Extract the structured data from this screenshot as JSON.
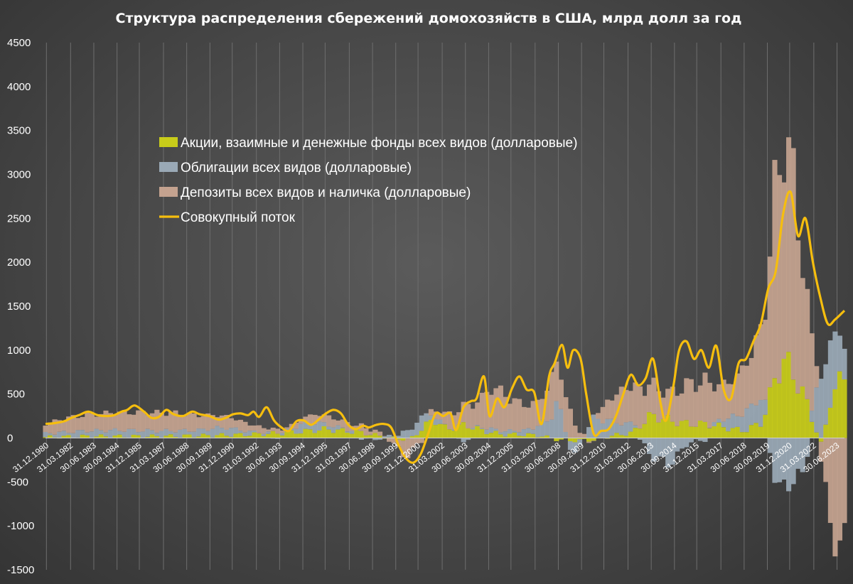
{
  "chart_data": {
    "type": "bar",
    "title": "Структура распределения сбережений домохозяйств в США, млрд долл за год",
    "ylim": [
      -1500,
      4500
    ],
    "yticks": [
      "4500",
      "4000",
      "3500",
      "3000",
      "2500",
      "2000",
      "1500",
      "1000",
      "500",
      "0",
      "-500",
      "-1000",
      "-1500"
    ],
    "ytick_values": [
      4500,
      4000,
      3500,
      3000,
      2500,
      2000,
      1500,
      1000,
      500,
      0,
      -500,
      -1000,
      -1500
    ],
    "x_tick_labels": [
      "31.12.1980",
      "31.03.1982",
      "30.06.1983",
      "30.09.1984",
      "31.12.1985",
      "31.03.1987",
      "30.06.1988",
      "30.09.1989",
      "31.12.1990",
      "31.03.1992",
      "30.06.1993",
      "30.09.1994",
      "31.12.1995",
      "31.03.1997",
      "30.06.1998",
      "30.09.1999",
      "31.12.2000",
      "31.03.2002",
      "30.06.2003",
      "30.09.2004",
      "31.12.2005",
      "31.03.2007",
      "30.06.2008",
      "30.09.2009",
      "31.12.2010",
      "31.03.2012",
      "30.06.2013",
      "30.09.2014",
      "31.12.2015",
      "31.03.2017",
      "30.06.2018",
      "30.09.2019",
      "31.12.2020",
      "31.03.2022",
      "30.06.2023"
    ],
    "x_tick_years": [
      1980.95,
      1982.25,
      1983.5,
      1984.75,
      1985.95,
      1987.25,
      1988.5,
      1989.75,
      1990.95,
      1992.25,
      1993.5,
      1994.75,
      1995.95,
      1997.25,
      1998.5,
      1999.75,
      2000.95,
      2002.25,
      2003.5,
      2004.75,
      2005.95,
      2007.25,
      2008.5,
      2009.75,
      2010.95,
      2012.25,
      2013.5,
      2014.75,
      2015.95,
      2017.25,
      2018.5,
      2019.75,
      2020.95,
      2022.25,
      2023.5
    ],
    "x_range": [
      1980.9,
      2023.9
    ],
    "legend_position": "upper-left",
    "grid": "vertical",
    "series": [
      {
        "name": "Акции, взаимные и денежные фонды всех видов (долларовые)",
        "color": "#c8cc1a",
        "knots": [
          [
            1980.9,
            10
          ],
          [
            1983,
            20
          ],
          [
            1985,
            20
          ],
          [
            1987,
            20
          ],
          [
            1990,
            30
          ],
          [
            1992,
            40
          ],
          [
            1994,
            60
          ],
          [
            1996,
            100
          ],
          [
            1998,
            60
          ],
          [
            1999.5,
            0
          ],
          [
            2000.5,
            -20
          ],
          [
            2001.8,
            220
          ],
          [
            2002.5,
            100
          ],
          [
            2003.5,
            150
          ],
          [
            2004.5,
            80
          ],
          [
            2005.5,
            40
          ],
          [
            2006.5,
            40
          ],
          [
            2007.5,
            30
          ],
          [
            2008.5,
            -20
          ],
          [
            2009.5,
            -30
          ],
          [
            2010.5,
            -20
          ],
          [
            2011.5,
            30
          ],
          [
            2012.5,
            60
          ],
          [
            2013.5,
            260
          ],
          [
            2014.5,
            200
          ],
          [
            2015.5,
            160
          ],
          [
            2016.5,
            160
          ],
          [
            2017.5,
            120
          ],
          [
            2018.5,
            80
          ],
          [
            2019.5,
            180
          ],
          [
            2020.2,
            700
          ],
          [
            2020.7,
            900
          ],
          [
            2021.2,
            700
          ],
          [
            2021.7,
            500
          ],
          [
            2022.2,
            200
          ],
          [
            2022.7,
            -100
          ],
          [
            2023.2,
            500
          ],
          [
            2023.9,
            700
          ]
        ]
      },
      {
        "name": "Облигации всех видов (долларовые)",
        "color": "#9aa9b6",
        "knots": [
          [
            1980.9,
            40
          ],
          [
            1983,
            60
          ],
          [
            1985,
            70
          ],
          [
            1987,
            60
          ],
          [
            1989,
            60
          ],
          [
            1990.5,
            90
          ],
          [
            1992,
            30
          ],
          [
            1993.5,
            0
          ],
          [
            1995,
            100
          ],
          [
            1996.5,
            40
          ],
          [
            1998.5,
            -20
          ],
          [
            2000,
            40
          ],
          [
            2001,
            150
          ],
          [
            2002,
            40
          ],
          [
            2003.5,
            -30
          ],
          [
            2004.5,
            40
          ],
          [
            2006,
            40
          ],
          [
            2007,
            60
          ],
          [
            2008,
            200
          ],
          [
            2008.5,
            400
          ],
          [
            2009.3,
            -200
          ],
          [
            2010.5,
            250
          ],
          [
            2011.5,
            150
          ],
          [
            2012.5,
            100
          ],
          [
            2013.5,
            -200
          ],
          [
            2014.5,
            -300
          ],
          [
            2015.5,
            -50
          ],
          [
            2016.5,
            -20
          ],
          [
            2017.5,
            100
          ],
          [
            2018.5,
            200
          ],
          [
            2019.5,
            300
          ],
          [
            2020.3,
            -600
          ],
          [
            2021,
            -500
          ],
          [
            2021.7,
            -400
          ],
          [
            2022.3,
            300
          ],
          [
            2022.8,
            900
          ],
          [
            2023.3,
            600
          ],
          [
            2023.9,
            400
          ]
        ]
      },
      {
        "name": "Депозиты всех видов и наличка (долларовые)",
        "color": "#c4a28f",
        "knots": [
          [
            1980.9,
            110
          ],
          [
            1982,
            160
          ],
          [
            1983,
            180
          ],
          [
            1984.5,
            200
          ],
          [
            1985.5,
            200
          ],
          [
            1986.5,
            210
          ],
          [
            1988,
            200
          ],
          [
            1989.5,
            160
          ],
          [
            1991,
            120
          ],
          [
            1992.5,
            60
          ],
          [
            1993.5,
            30
          ],
          [
            1994.5,
            50
          ],
          [
            1995.5,
            100
          ],
          [
            1996.5,
            90
          ],
          [
            1997.5,
            70
          ],
          [
            1998.5,
            60
          ],
          [
            1999.5,
            -30
          ],
          [
            2000.3,
            -200
          ],
          [
            2001.5,
            30
          ],
          [
            2002.5,
            150
          ],
          [
            2003.5,
            210
          ],
          [
            2004.5,
            350
          ],
          [
            2005,
            500
          ],
          [
            2005.5,
            420
          ],
          [
            2006.5,
            300
          ],
          [
            2007.5,
            260
          ],
          [
            2008.2,
            460
          ],
          [
            2008.8,
            420
          ],
          [
            2009.5,
            120
          ],
          [
            2010.2,
            -40
          ],
          [
            2010.8,
            120
          ],
          [
            2011.5,
            300
          ],
          [
            2012.5,
            450
          ],
          [
            2013.5,
            350
          ],
          [
            2014.5,
            300
          ],
          [
            2015.5,
            450
          ],
          [
            2016.5,
            480
          ],
          [
            2017.5,
            380
          ],
          [
            2018.5,
            500
          ],
          [
            2019.5,
            800
          ],
          [
            2020.2,
            2200
          ],
          [
            2020.7,
            2500
          ],
          [
            2021.2,
            2200
          ],
          [
            2021.7,
            1400
          ],
          [
            2022.2,
            700
          ],
          [
            2022.7,
            -300
          ],
          [
            2023.2,
            -1100
          ],
          [
            2023.9,
            -1200
          ]
        ]
      }
    ],
    "total_flow": {
      "name": "Совокупный поток",
      "color": "#f6be0e",
      "x": [
        1980.9,
        1981.4,
        1981.9,
        1982.3,
        1982.7,
        1983.2,
        1983.7,
        1984.2,
        1984.6,
        1985.0,
        1985.3,
        1985.7,
        1986.2,
        1986.6,
        1987.0,
        1987.4,
        1987.8,
        1988.3,
        1988.8,
        1989.2,
        1989.7,
        1990.2,
        1990.6,
        1991.0,
        1991.4,
        1991.8,
        1992.1,
        1992.4,
        1992.8,
        1993.2,
        1993.6,
        1994.0,
        1994.4,
        1994.8,
        1995.2,
        1995.6,
        1996.0,
        1996.4,
        1996.8,
        1997.2,
        1997.6,
        1998.0,
        1998.3,
        1998.7,
        1999.1,
        1999.5,
        1999.9,
        2000.3,
        2000.7,
        2001.1,
        2001.5,
        2001.9,
        2002.3,
        2002.7,
        2003.0,
        2003.4,
        2003.8,
        2004.1,
        2004.5,
        2004.8,
        2005.2,
        2005.6,
        2006.0,
        2006.4,
        2006.8,
        2007.2,
        2007.6,
        2008.0,
        2008.3,
        2008.7,
        2009.0,
        2009.3,
        2009.7,
        2010.0,
        2010.4,
        2010.8,
        2011.2,
        2011.6,
        2012.0,
        2012.4,
        2012.8,
        2013.2,
        2013.6,
        2014.0,
        2014.3,
        2014.7,
        2015.0,
        2015.4,
        2015.8,
        2016.2,
        2016.6,
        2017.0,
        2017.4,
        2017.8,
        2018.2,
        2018.6,
        2019.0,
        2019.4,
        2019.8,
        2020.2,
        2020.6,
        2021.0,
        2021.4,
        2021.8,
        2022.2,
        2022.6,
        2023.0,
        2023.4,
        2023.9
      ],
      "y": [
        160,
        170,
        190,
        230,
        260,
        300,
        260,
        250,
        260,
        300,
        320,
        370,
        300,
        230,
        240,
        320,
        270,
        250,
        300,
        270,
        250,
        210,
        230,
        270,
        280,
        260,
        300,
        240,
        350,
        200,
        120,
        80,
        190,
        200,
        150,
        210,
        280,
        320,
        280,
        150,
        100,
        140,
        120,
        150,
        160,
        120,
        -80,
        -230,
        -280,
        -180,
        50,
        280,
        250,
        280,
        90,
        350,
        420,
        450,
        700,
        250,
        450,
        350,
        560,
        700,
        550,
        520,
        160,
        700,
        850,
        1060,
        800,
        1000,
        900,
        500,
        50,
        80,
        100,
        250,
        500,
        720,
        600,
        680,
        900,
        400,
        200,
        600,
        1000,
        1100,
        900,
        1000,
        800,
        1050,
        550,
        450,
        850,
        900,
        1100,
        1300,
        1700,
        1900,
        2550,
        2800,
        2300,
        2500,
        2000,
        1600,
        1300,
        1350,
        1450
      ]
    }
  },
  "legend": [
    {
      "label": "Акции, взаимные и денежные фонды всех видов (долларовые)",
      "color": "#c8cc1a",
      "kind": "box"
    },
    {
      "label": "Облигации всех видов (долларовые)",
      "color": "#9aa9b6",
      "kind": "box"
    },
    {
      "label": "Депозиты всех видов и наличка (долларовые)",
      "color": "#c4a28f",
      "kind": "box"
    },
    {
      "label": "Совокупный поток",
      "color": "#f6be0e",
      "kind": "line"
    }
  ]
}
